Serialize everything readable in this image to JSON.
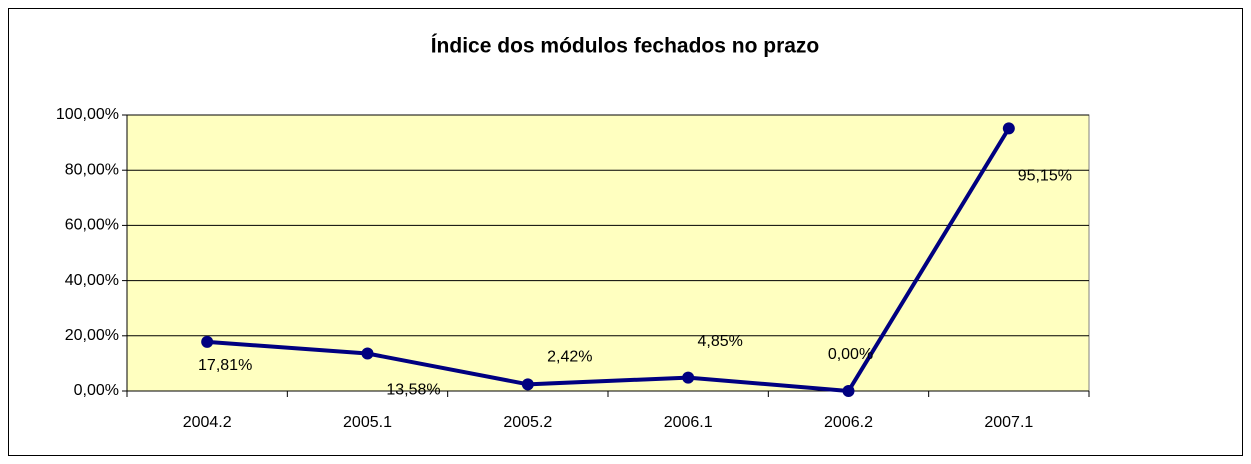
{
  "chart_data": {
    "type": "line",
    "title": "Índice dos módulos fechados no prazo",
    "categories": [
      "2004.2",
      "2005.1",
      "2005.2",
      "2006.1",
      "2006.2",
      "2007.1"
    ],
    "series": [
      {
        "color": "#000080",
        "values": [
          17.81,
          13.58,
          2.42,
          4.85,
          0.0,
          95.15
        ],
        "value_labels": [
          "17,81%",
          "13,58%",
          "2,42%",
          "4,85%",
          "0,00%",
          "95,15%"
        ]
      }
    ],
    "ylim": [
      0,
      100
    ],
    "yticks": [
      {
        "value": 0,
        "label": "0,00%"
      },
      {
        "value": 20,
        "label": "20,00%"
      },
      {
        "value": 40,
        "label": "40,00%"
      },
      {
        "value": 60,
        "label": "60,00%"
      },
      {
        "value": 80,
        "label": "80,00%"
      },
      {
        "value": 100,
        "label": "100,00%"
      }
    ],
    "grid": true,
    "plot_background": "#ffffc0"
  }
}
